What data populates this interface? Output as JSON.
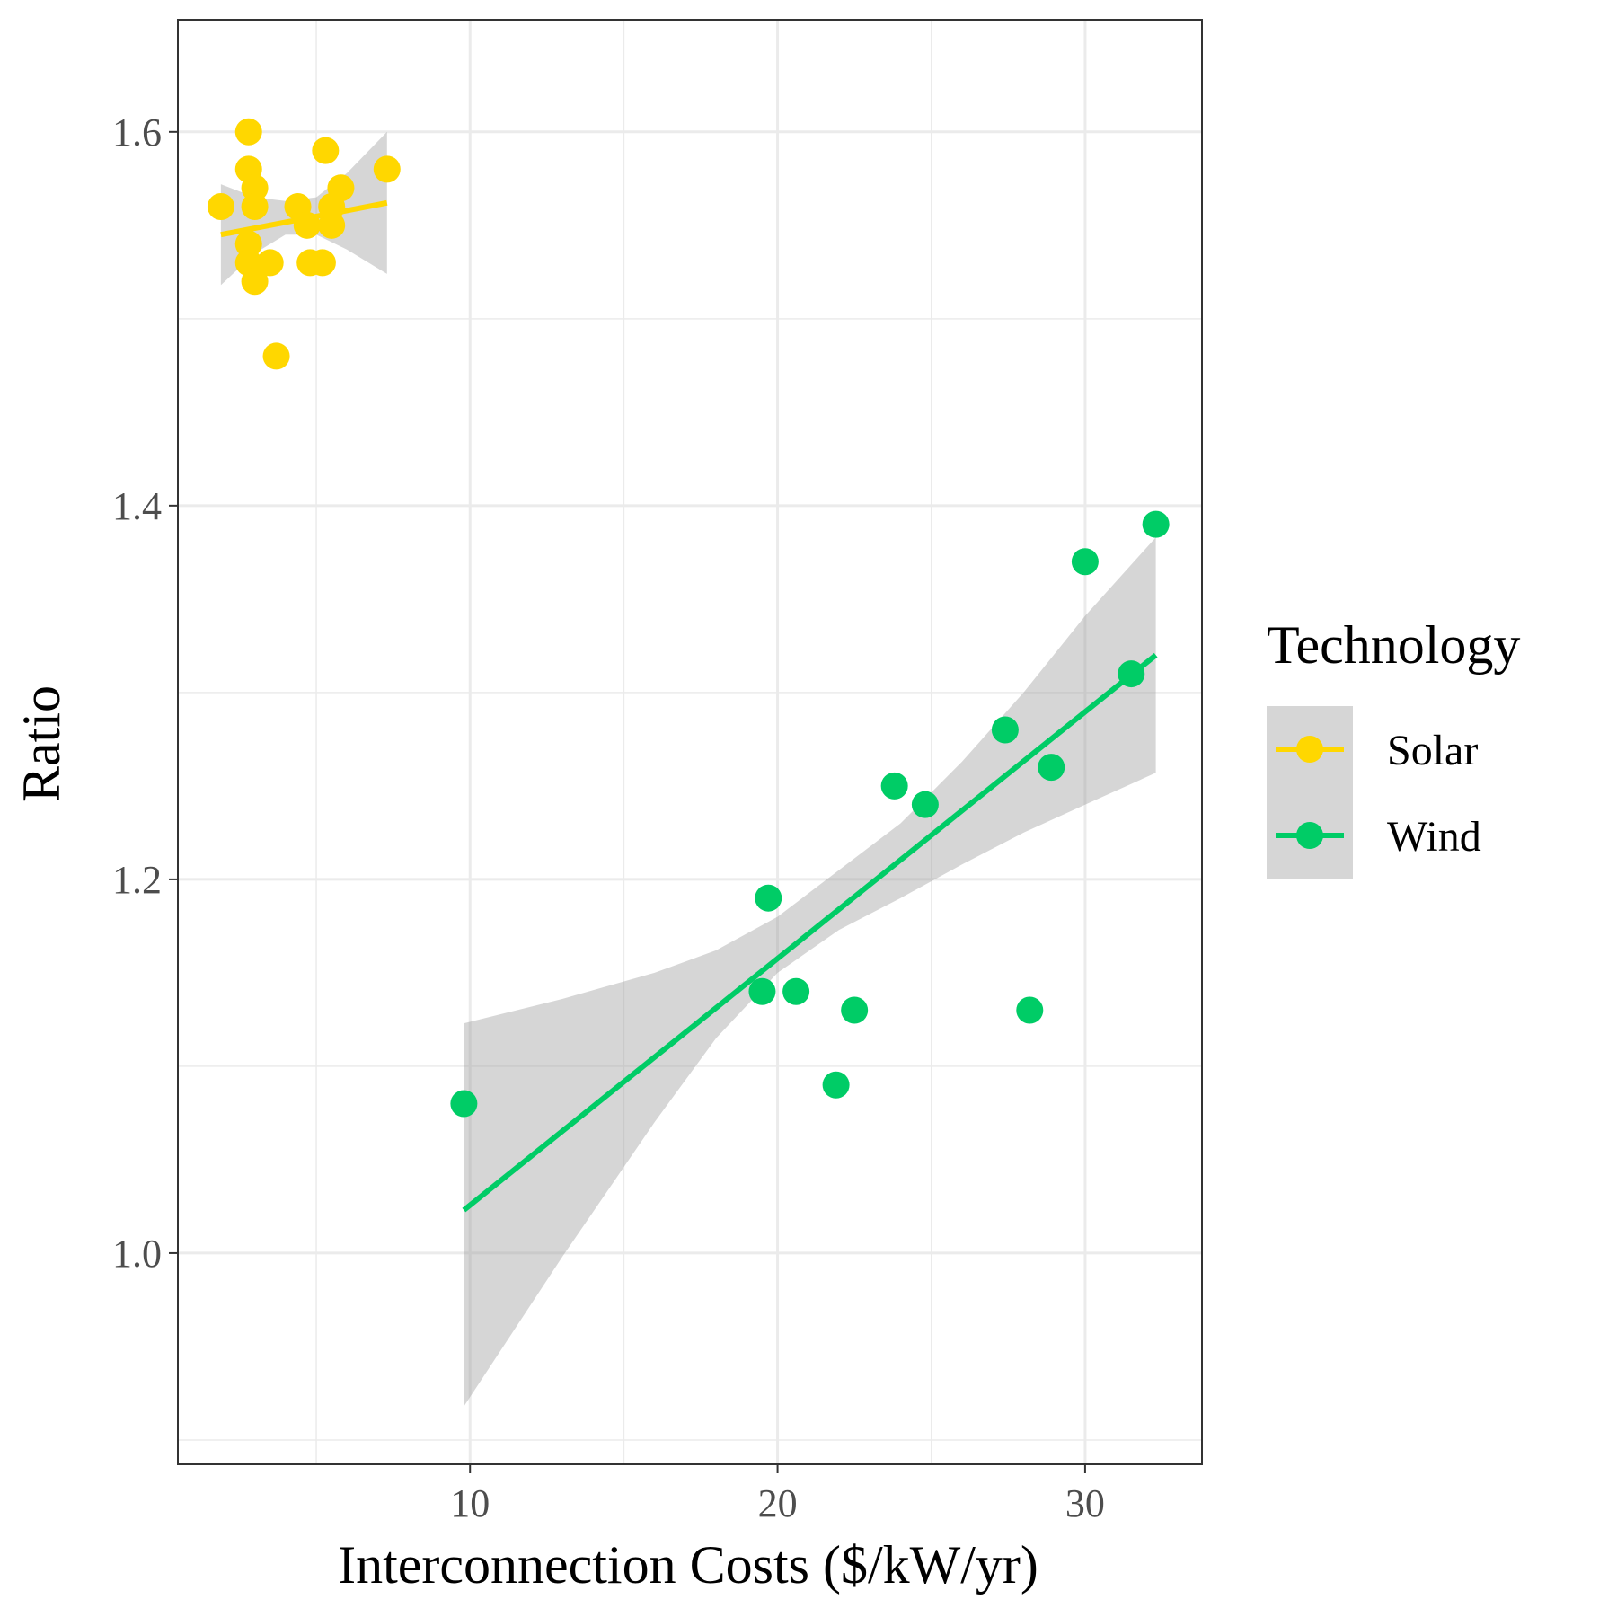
{
  "chart_data": {
    "type": "scatter",
    "xlabel": "Interconnection Costs ($/kW/yr)",
    "ylabel": "Ratio",
    "xlim": [
      0.5,
      33.8
    ],
    "ylim": [
      0.887,
      1.66
    ],
    "x_ticks": [
      10,
      20,
      30
    ],
    "x_tick_labels": [
      "10",
      "20",
      "30"
    ],
    "x_minor_ticks": [
      5,
      15,
      25
    ],
    "y_ticks": [
      1.0,
      1.2,
      1.4,
      1.6
    ],
    "y_tick_labels": [
      "1.0",
      "1.2",
      "1.4",
      "1.6"
    ],
    "y_minor_ticks": [
      0.9,
      1.1,
      1.3,
      1.5
    ],
    "grid": true,
    "legend": {
      "title": "Technology",
      "position": "right"
    },
    "series": [
      {
        "name": "Solar",
        "color": "#FFD700",
        "points": [
          [
            1.9,
            1.56
          ],
          [
            2.8,
            1.6
          ],
          [
            2.8,
            1.58
          ],
          [
            3.0,
            1.57
          ],
          [
            3.0,
            1.56
          ],
          [
            2.8,
            1.54
          ],
          [
            2.8,
            1.53
          ],
          [
            3.0,
            1.52
          ],
          [
            3.5,
            1.53
          ],
          [
            3.7,
            1.48
          ],
          [
            4.4,
            1.56
          ],
          [
            4.7,
            1.55
          ],
          [
            4.8,
            1.53
          ],
          [
            5.2,
            1.53
          ],
          [
            5.3,
            1.59
          ],
          [
            5.5,
            1.55
          ],
          [
            5.5,
            1.56
          ],
          [
            5.8,
            1.57
          ],
          [
            7.3,
            1.58
          ]
        ],
        "fit": {
          "x": [
            1.9,
            7.3
          ],
          "y": [
            1.545,
            1.562
          ]
        },
        "band": {
          "x": [
            1.9,
            3.0,
            4.0,
            5.0,
            6.0,
            7.3
          ],
          "lower": [
            1.518,
            1.535,
            1.545,
            1.545,
            1.537,
            1.524
          ],
          "upper": [
            1.572,
            1.565,
            1.563,
            1.565,
            1.578,
            1.6
          ]
        }
      },
      {
        "name": "Wind",
        "color": "#00CC66",
        "points": [
          [
            9.8,
            1.08
          ],
          [
            19.5,
            1.14
          ],
          [
            19.7,
            1.19
          ],
          [
            20.6,
            1.14
          ],
          [
            21.9,
            1.09
          ],
          [
            22.5,
            1.13
          ],
          [
            23.8,
            1.25
          ],
          [
            24.8,
            1.24
          ],
          [
            27.4,
            1.28
          ],
          [
            28.2,
            1.13
          ],
          [
            28.9,
            1.26
          ],
          [
            30.0,
            1.37
          ],
          [
            31.5,
            1.31
          ],
          [
            32.3,
            1.39
          ]
        ],
        "fit": {
          "x": [
            9.8,
            32.3
          ],
          "y": [
            1.023,
            1.32
          ]
        },
        "band": {
          "x": [
            9.8,
            13.0,
            16.0,
            18.0,
            20.0,
            22.0,
            24.0,
            26.0,
            28.0,
            30.0,
            32.3
          ],
          "lower": [
            0.918,
            0.998,
            1.07,
            1.115,
            1.15,
            1.173,
            1.19,
            1.208,
            1.225,
            1.24,
            1.257
          ],
          "upper": [
            1.123,
            1.136,
            1.15,
            1.162,
            1.18,
            1.205,
            1.23,
            1.263,
            1.3,
            1.341,
            1.383
          ]
        }
      }
    ]
  }
}
